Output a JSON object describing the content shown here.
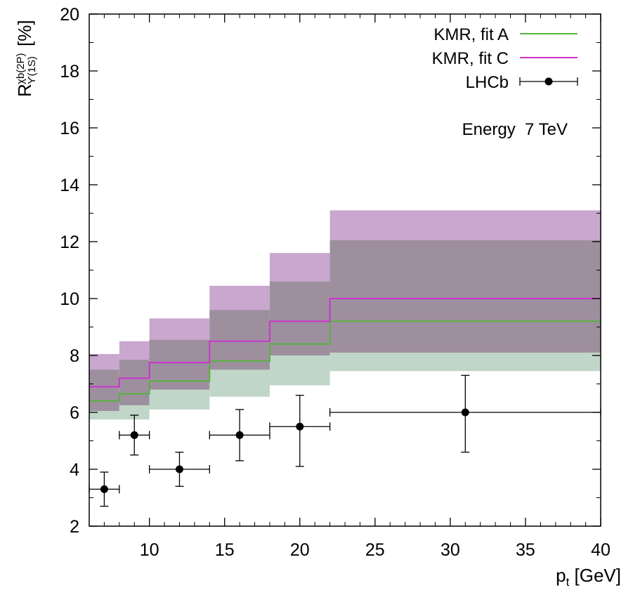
{
  "chart_data": {
    "type": "step",
    "title": "",
    "xlabel": "p",
    "xlabel_sub": "t",
    "xlabel_unit": " [GeV]",
    "ylabel": "R",
    "ylabel_sup": "χb(2P)",
    "ylabel_sub": "ϒ(1S)",
    "ylabel_unit": "[%]",
    "xlim": [
      6,
      40
    ],
    "ylim": [
      2,
      20
    ],
    "xticks": [
      10,
      15,
      20,
      25,
      30,
      35,
      40
    ],
    "yticks": [
      2,
      4,
      6,
      8,
      10,
      12,
      14,
      16,
      18,
      20
    ],
    "annotation": "Energy  7 TeV",
    "bin_edges": [
      6,
      8,
      10,
      14,
      18,
      22,
      40
    ],
    "series": [
      {
        "name": "KMR, fit C",
        "color": "#cc33cc",
        "band_color": "#c9a7cf",
        "central": [
          6.9,
          7.2,
          7.75,
          8.5,
          9.2,
          10.0
        ],
        "upper": [
          8.05,
          8.5,
          9.3,
          10.45,
          11.6,
          13.1
        ],
        "lower": [
          6.05,
          6.25,
          6.8,
          7.5,
          8.0,
          8.1
        ]
      },
      {
        "name": "KMR, fit A",
        "color": "#55b33b",
        "band_color": "#bfd6c8",
        "central": [
          6.4,
          6.65,
          7.1,
          7.8,
          8.4,
          9.2
        ],
        "upper": [
          7.5,
          7.85,
          8.55,
          9.6,
          10.6,
          12.05
        ],
        "lower": [
          5.75,
          5.75,
          6.1,
          6.55,
          6.95,
          7.45
        ]
      }
    ],
    "data_series": {
      "name": "LHCb",
      "color": "#000000",
      "points": [
        {
          "x": 7,
          "y": 3.3,
          "xlo": 6,
          "xhi": 8,
          "ylo": 2.7,
          "yhi": 3.9
        },
        {
          "x": 9,
          "y": 5.2,
          "xlo": 8,
          "xhi": 10,
          "ylo": 4.5,
          "yhi": 5.9
        },
        {
          "x": 12,
          "y": 4.0,
          "xlo": 10,
          "xhi": 14,
          "ylo": 3.4,
          "yhi": 4.6
        },
        {
          "x": 16,
          "y": 5.2,
          "xlo": 14,
          "xhi": 18,
          "ylo": 4.3,
          "yhi": 6.1
        },
        {
          "x": 20,
          "y": 5.5,
          "xlo": 18,
          "xhi": 22,
          "ylo": 4.1,
          "yhi": 6.6
        },
        {
          "x": 31,
          "y": 6.0,
          "xlo": 22,
          "xhi": 40,
          "ylo": 4.6,
          "yhi": 7.3
        }
      ]
    },
    "legend": [
      "KMR, fit A",
      "KMR, fit C",
      "LHCb"
    ],
    "legend_position": "top-right",
    "overlap_color": "#9e8f9f"
  }
}
